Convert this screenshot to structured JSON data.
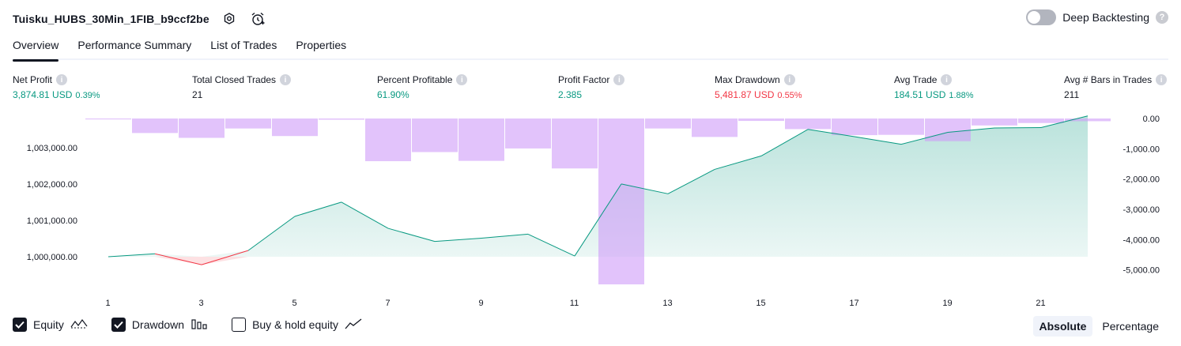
{
  "header": {
    "strategy_title": "Tuisku_HUBS_30Min_1FIB_b9ccf2be",
    "deep_backtesting_label": "Deep Backtesting"
  },
  "tabs": [
    "Overview",
    "Performance Summary",
    "List of Trades",
    "Properties"
  ],
  "active_tab": "Overview",
  "metrics": [
    {
      "label": "Net Profit",
      "value": "3,874.81 USD",
      "pct": "0.39%",
      "color": "green"
    },
    {
      "label": "Total Closed Trades",
      "value": "21",
      "pct": "",
      "color": "neutral"
    },
    {
      "label": "Percent Profitable",
      "value": "61.90%",
      "pct": "",
      "color": "green"
    },
    {
      "label": "Profit Factor",
      "value": "2.385",
      "pct": "",
      "color": "green"
    },
    {
      "label": "Max Drawdown",
      "value": "5,481.87 USD",
      "pct": "0.55%",
      "color": "red"
    },
    {
      "label": "Avg Trade",
      "value": "184.51 USD",
      "pct": "1.88%",
      "color": "green"
    },
    {
      "label": "Avg # Bars in Trades",
      "value": "211",
      "pct": "",
      "color": "neutral"
    }
  ],
  "chart_data": {
    "type": "line",
    "x": [
      1,
      2,
      3,
      4,
      5,
      6,
      7,
      8,
      9,
      10,
      11,
      12,
      13,
      14,
      15,
      16,
      17,
      18,
      19,
      20,
      21,
      22
    ],
    "x_tick_labels": [
      "1",
      "3",
      "5",
      "7",
      "9",
      "11",
      "13",
      "15",
      "17",
      "19",
      "21"
    ],
    "series": [
      {
        "name": "Equity",
        "axis": "left",
        "values": [
          1000000,
          1000080,
          999780,
          1000170,
          1001110,
          1001500,
          1000780,
          1000420,
          1000510,
          1000620,
          1000020,
          1002000,
          1001730,
          1002400,
          1002770,
          1003500,
          1003300,
          1003090,
          1003420,
          1003540,
          1003550,
          1003870
        ],
        "color": "#089981",
        "below_start_color": "#f23645"
      },
      {
        "name": "Drawdown",
        "axis": "right",
        "type": "bar",
        "values": [
          -30,
          -480,
          -640,
          -330,
          -580,
          -40,
          -1410,
          -1110,
          -1400,
          -990,
          -1650,
          -5480,
          -330,
          -610,
          -80,
          -350,
          -550,
          -540,
          -750,
          -230,
          -150,
          -90
        ],
        "color": "#cf9bf9"
      }
    ],
    "y_left_ticks": [
      "1,000,000.00",
      "1,001,000.00",
      "1,002,000.00",
      "1,003,000.00"
    ],
    "y_left_tick_values": [
      1000000,
      1001000,
      1002000,
      1003000
    ],
    "y_left_range": [
      999500,
      1004060
    ],
    "y_right_ticks": [
      "0.00",
      "-1,000.00",
      "-2,000.00",
      "-3,000.00",
      "-4,000.00",
      "-5,000.00"
    ],
    "y_right_tick_values": [
      0,
      -1000,
      -2000,
      -3000,
      -4000,
      -5000
    ],
    "y_right_range": [
      -5480,
      0
    ]
  },
  "footer": {
    "equity_label": "Equity",
    "drawdown_label": "Drawdown",
    "buyhold_label": "Buy & hold equity",
    "equity_checked": true,
    "drawdown_checked": true,
    "buyhold_checked": false,
    "absolute_label": "Absolute",
    "percentage_label": "Percentage"
  }
}
